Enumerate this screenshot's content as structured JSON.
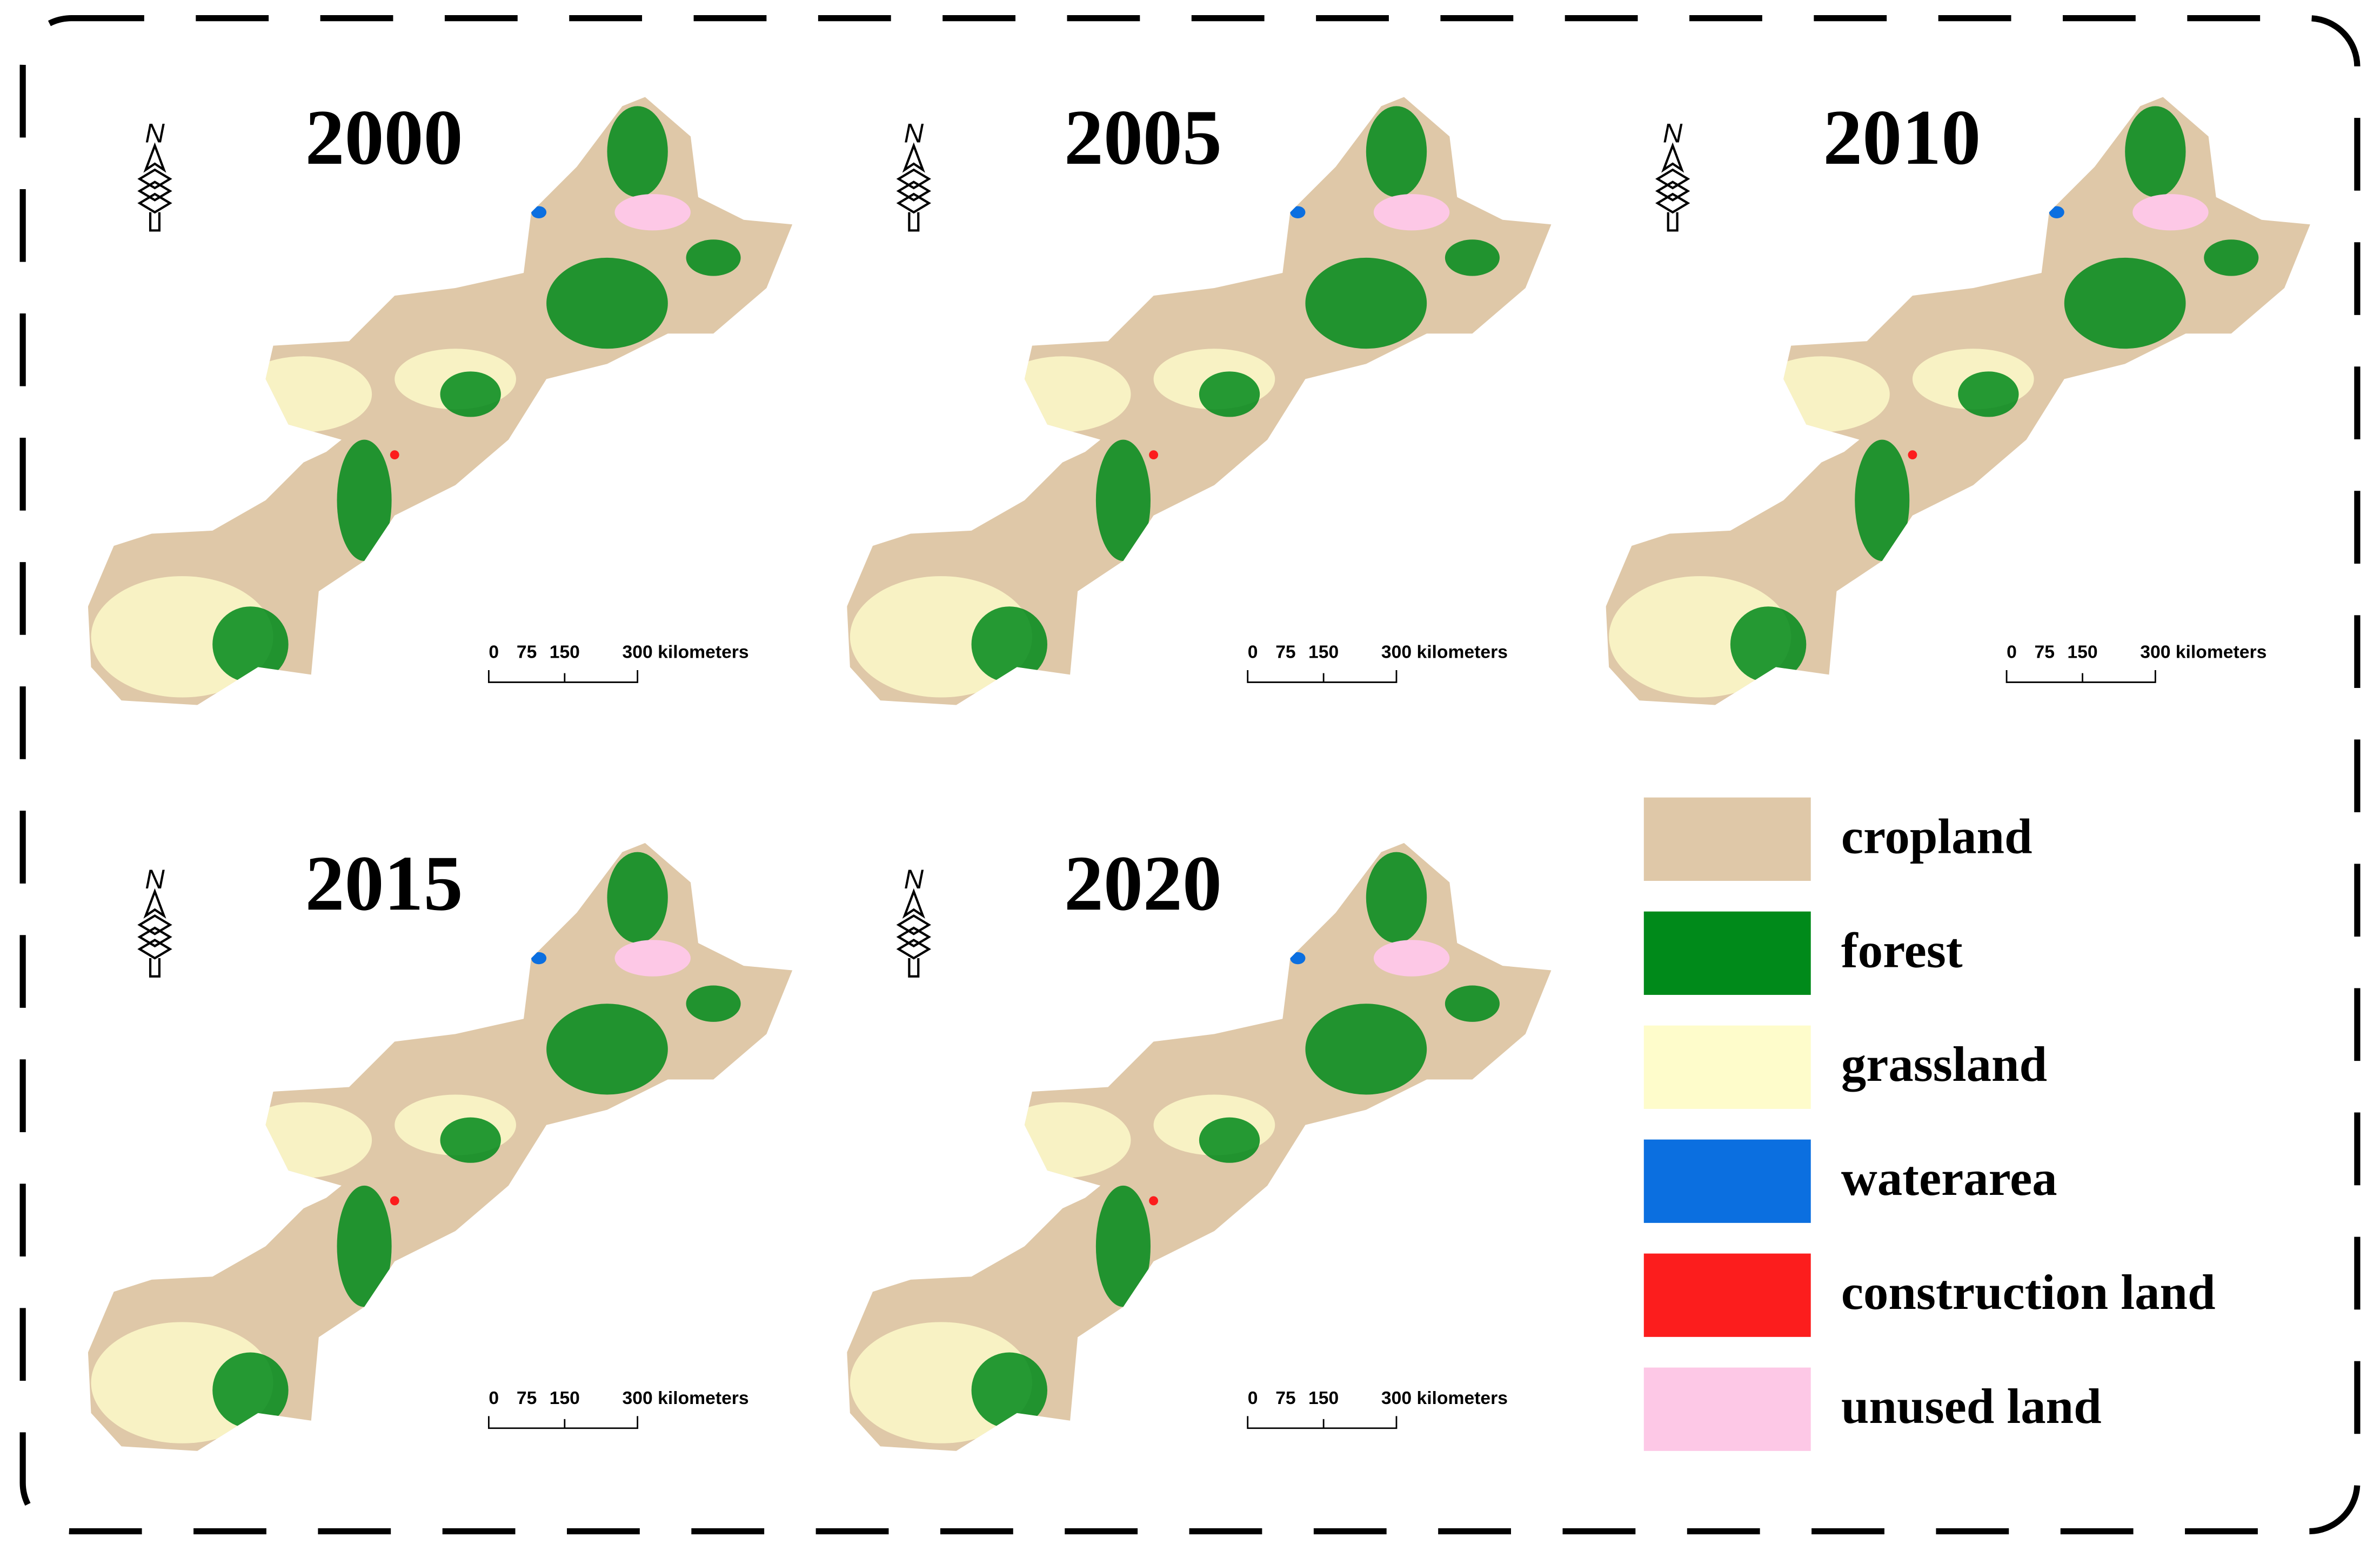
{
  "panels": [
    {
      "title": "2000"
    },
    {
      "title": "2005"
    },
    {
      "title": "2010"
    },
    {
      "title": "2015"
    },
    {
      "title": "2020"
    }
  ],
  "north_label": "N",
  "scale_bar": {
    "labels": [
      "0",
      "75",
      "150",
      "300 kilometers"
    ]
  },
  "legend": {
    "items": [
      {
        "label": "cropland",
        "color": "#dfc8a8"
      },
      {
        "label": "forest",
        "color": "#008a1a"
      },
      {
        "label": "grassland",
        "color": "#fefccb"
      },
      {
        "label": "waterarea",
        "color": "#0b6fe0"
      },
      {
        "label": "construction land",
        "color": "#fc1d1d"
      },
      {
        "label": "unused land",
        "color": "#fdc8e6"
      }
    ]
  }
}
